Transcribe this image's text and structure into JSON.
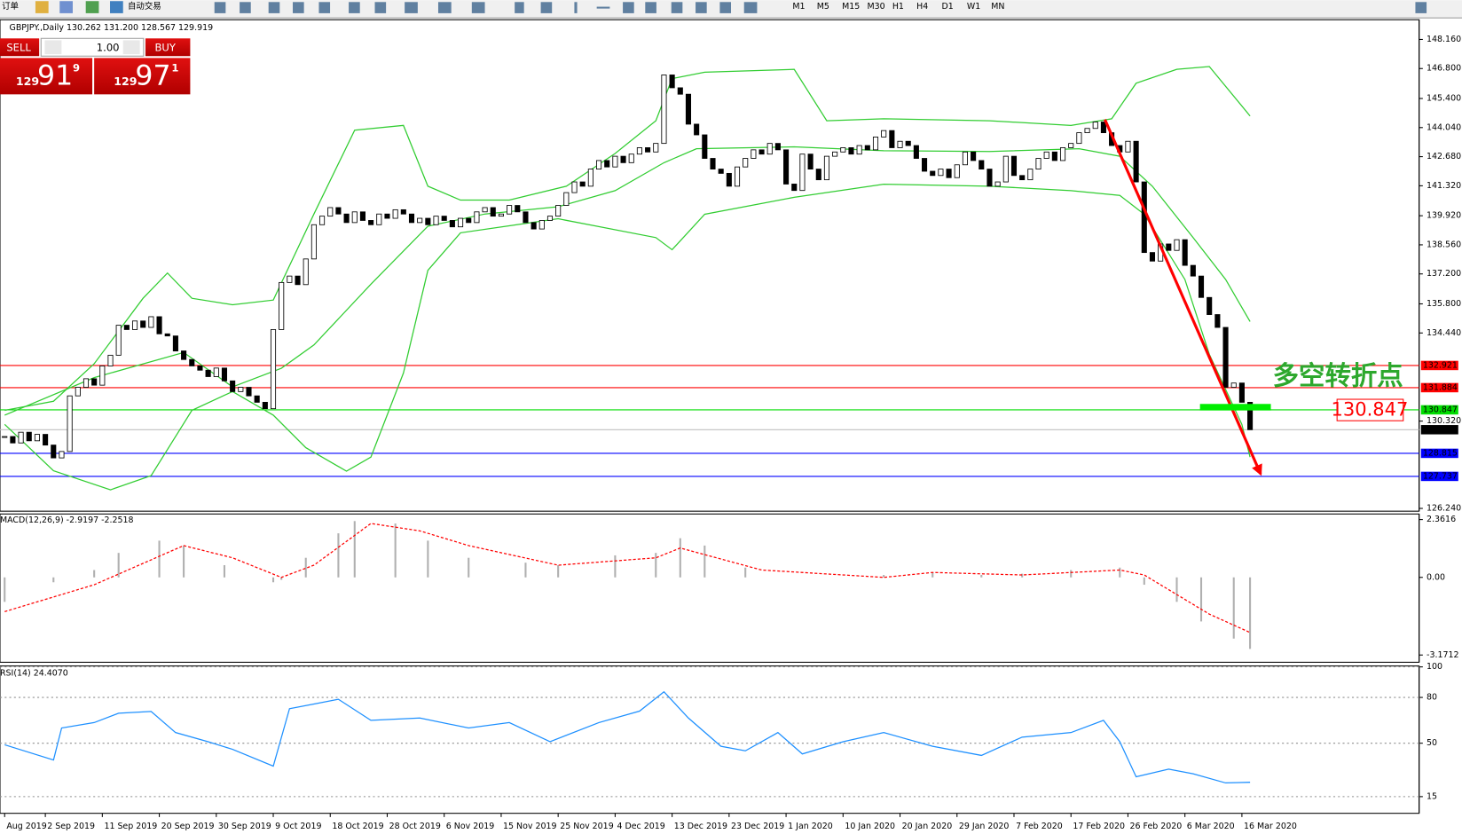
{
  "toolbar": {
    "order": "订单",
    "auto_trade": "自动交易",
    "timeframes": [
      "M1",
      "M5",
      "M15",
      "M30",
      "H1",
      "H4",
      "D1",
      "W1",
      "MN"
    ]
  },
  "trade_panel": {
    "sell": "SELL",
    "lots": "1.00",
    "buy": "BUY",
    "bid": {
      "big_figure": "129",
      "pips": "91",
      "fraction": "9"
    },
    "ask": {
      "big_figure": "129",
      "pips": "97",
      "fraction": "1"
    }
  },
  "chart_data": [
    {
      "type": "candlestick",
      "title": "GBPJPY.,Daily 130.262 131.200 128.567 129.919",
      "close": [
        129.6,
        129.3,
        129.8,
        129.4,
        129.7,
        129.2,
        128.6,
        128.9,
        131.5,
        131.9,
        132.3,
        132.0,
        132.9,
        133.4,
        134.8,
        134.6,
        135.0,
        134.7,
        135.2,
        134.4,
        134.3,
        133.6,
        133.2,
        132.9,
        132.7,
        132.4,
        132.8,
        132.2,
        131.7,
        131.9,
        131.5,
        131.2,
        130.9,
        134.6,
        136.8,
        137.1,
        136.7,
        137.9,
        139.5,
        139.9,
        140.3,
        140.0,
        139.6,
        140.1,
        139.7,
        139.5,
        140.0,
        139.8,
        140.2,
        140.0,
        139.6,
        139.8,
        139.5,
        139.9,
        139.7,
        139.4,
        139.8,
        139.6,
        140.1,
        140.3,
        139.9,
        140.0,
        140.4,
        140.1,
        139.6,
        139.3,
        139.7,
        139.9,
        140.4,
        141.0,
        141.5,
        141.3,
        142.1,
        142.5,
        142.2,
        142.7,
        142.4,
        142.8,
        143.1,
        142.9,
        143.3,
        146.5,
        145.9,
        145.6,
        144.2,
        143.7,
        142.6,
        142.1,
        141.9,
        141.3,
        142.2,
        142.6,
        143.0,
        142.8,
        143.3,
        143.0,
        141.4,
        141.1,
        142.8,
        142.1,
        141.6,
        142.7,
        142.9,
        143.1,
        142.8,
        143.2,
        143.0,
        143.6,
        143.9,
        143.1,
        143.4,
        143.2,
        142.6,
        142.0,
        141.8,
        142.1,
        141.7,
        142.3,
        142.9,
        142.5,
        142.1,
        141.3,
        141.5,
        142.7,
        141.8,
        141.6,
        142.1,
        142.6,
        142.9,
        142.5,
        143.1,
        143.3,
        143.8,
        144.0,
        144.3,
        143.8,
        143.2,
        142.9,
        143.4,
        141.5,
        138.2,
        137.8,
        138.6,
        138.3,
        138.8,
        137.6,
        137.1,
        136.1,
        135.3,
        134.7,
        131.9,
        132.1,
        131.2,
        129.919
      ],
      "xlim": [
        -0.57,
        173.77
      ],
      "ylim": [
        126.11,
        149.08
      ],
      "yticks": [
        {
          "value": 148.16,
          "label": "148.160"
        },
        {
          "value": 146.8,
          "label": "146.800"
        },
        {
          "value": 145.4,
          "label": "145.400"
        },
        {
          "value": 144.04,
          "label": "144.040"
        },
        {
          "value": 142.68,
          "label": "142.680"
        },
        {
          "value": 141.32,
          "label": "141.320"
        },
        {
          "value": 139.92,
          "label": "139.920"
        },
        {
          "value": 138.56,
          "label": "138.560"
        },
        {
          "value": 137.2,
          "label": "137.200"
        },
        {
          "value": 135.8,
          "label": "135.800"
        },
        {
          "value": 134.44,
          "label": "134.440"
        },
        {
          "value": 130.32,
          "label": "130.320"
        },
        {
          "value": 126.24,
          "label": "126.240"
        }
      ],
      "series": [
        {
          "color": "#32cd32",
          "x": [
            0,
            6,
            11,
            17,
            20,
            23,
            28,
            33,
            38,
            43,
            49,
            52,
            56,
            62,
            69,
            75,
            80,
            82,
            86,
            97,
            101,
            108,
            121,
            131,
            136,
            139,
            144,
            148,
            153
          ],
          "values": [
            130.82,
            131.25,
            133.0,
            136.06,
            137.24,
            136.06,
            135.76,
            135.98,
            140.0,
            143.92,
            144.14,
            141.3,
            140.65,
            140.65,
            141.3,
            142.83,
            144.36,
            146.33,
            146.63,
            146.76,
            144.36,
            144.45,
            144.36,
            144.14,
            144.45,
            146.11,
            146.76,
            146.89,
            144.58
          ]
        },
        {
          "color": "#32cd32",
          "x": [
            0,
            11,
            22,
            28,
            34,
            38,
            45,
            52,
            59,
            68,
            75,
            81,
            85,
            97,
            108,
            121,
            132,
            137,
            141,
            146,
            150,
            153
          ],
          "values": [
            130.6,
            132.35,
            133.53,
            131.92,
            132.79,
            133.88,
            136.72,
            139.43,
            140.0,
            140.34,
            141.09,
            142.4,
            143.05,
            143.14,
            142.96,
            142.92,
            143.05,
            142.7,
            141.3,
            138.9,
            136.94,
            134.97
          ]
        },
        {
          "color": "#32cd32",
          "x": [
            0,
            6,
            13,
            18,
            23,
            28,
            33,
            37,
            42,
            45,
            49,
            52,
            56,
            68,
            80,
            82,
            86,
            97,
            108,
            121,
            131,
            137,
            140,
            145,
            148,
            152,
            153
          ],
          "values": [
            130.17,
            128.0,
            127.11,
            127.77,
            130.82,
            131.7,
            130.6,
            129.08,
            127.98,
            128.64,
            132.57,
            137.37,
            139.12,
            139.78,
            138.9,
            138.33,
            139.99,
            140.78,
            141.39,
            141.3,
            141.09,
            140.87,
            139.99,
            136.94,
            133.44,
            130.17,
            128.64
          ]
        }
      ],
      "levels": [
        {
          "value": 132.921,
          "color": "#ff0000",
          "label_fill": "#ff0000"
        },
        {
          "value": 131.884,
          "color": "#ff0000",
          "label_fill": "#ff0000"
        },
        {
          "value": 130.847,
          "color": "#00dd00",
          "label_fill": "#00dd00"
        },
        {
          "value": 129.919,
          "color": "#c0c0c0",
          "label_fill": "#000000"
        },
        {
          "value": 128.815,
          "color": "#0000ff",
          "label_fill": "#0000ff"
        },
        {
          "value": 127.737,
          "color": "#0000ff",
          "label_fill": "#0000ff"
        }
      ],
      "annotations": [
        "多空转折点",
        "130.847"
      ]
    },
    {
      "type": "bar",
      "title": "MACD(12,26,9) -2.9197 -2.2518",
      "xlim": [
        -0.57,
        173.77
      ],
      "ylim": [
        -3.467,
        2.59
      ],
      "yticks": [
        2.3616,
        {
          "value": 0,
          "label": "0.00"
        },
        -3.1712
      ],
      "series": [
        {
          "kind": "bar",
          "color": "#b0b0b0",
          "x": [
            0,
            6,
            11,
            14,
            19,
            22,
            27,
            33,
            34,
            37,
            41,
            43,
            48,
            52,
            57,
            64,
            68,
            75,
            80,
            83,
            86,
            91,
            97,
            103,
            108,
            114,
            120,
            125,
            131,
            137,
            140,
            144,
            147,
            151,
            153
          ],
          "values": [
            -1.0,
            -0.2,
            0.3,
            1.0,
            1.5,
            1.3,
            0.5,
            -0.2,
            -0.1,
            0.8,
            1.8,
            2.3,
            2.2,
            1.5,
            0.8,
            0.6,
            0.5,
            0.9,
            1.0,
            1.6,
            1.3,
            0.4,
            0.0,
            0.0,
            0.1,
            0.2,
            0.1,
            0.15,
            0.3,
            0.4,
            -0.3,
            -1.0,
            -1.8,
            -2.5,
            -2.9197
          ]
        },
        {
          "kind": "line",
          "color": "#ff0000",
          "dash": true,
          "x": [
            0,
            11,
            22,
            28,
            34,
            38,
            45,
            51,
            57,
            68,
            80,
            83,
            93,
            108,
            114,
            125,
            137,
            140,
            148,
            153
          ],
          "values": [
            -1.4,
            -0.3,
            1.3,
            0.8,
            0.0,
            0.5,
            2.2,
            1.9,
            1.3,
            0.5,
            0.8,
            1.2,
            0.3,
            0.0,
            0.2,
            0.1,
            0.3,
            0.1,
            -1.5,
            -2.2518
          ]
        }
      ]
    },
    {
      "type": "line",
      "title": "RSI(14) 24.4070",
      "xlim": [
        -0.57,
        173.77
      ],
      "ylim": [
        4.07,
        100.6
      ],
      "yticks": [
        100,
        80,
        50,
        15
      ],
      "grid": true,
      "series": [
        {
          "color": "#1e90ff",
          "x": [
            0,
            6,
            7,
            11,
            14,
            18,
            21,
            25,
            28,
            33,
            35,
            38,
            41,
            45,
            51,
            57,
            62,
            67,
            73,
            78,
            81,
            84,
            88,
            91,
            95,
            98,
            103,
            108,
            114,
            120,
            125,
            131,
            135,
            137,
            139,
            143,
            146,
            150,
            153
          ],
          "values": [
            49,
            39,
            60,
            63.5,
            69.6,
            70.8,
            57,
            51,
            46,
            35,
            72.6,
            75.7,
            78.8,
            65,
            66.5,
            60,
            63.5,
            51,
            63.5,
            71,
            83.7,
            66.5,
            48,
            45,
            57,
            43,
            51,
            57,
            48,
            42,
            54,
            57,
            65,
            51,
            28,
            33,
            30,
            24,
            24.407
          ]
        }
      ],
      "xticks": [
        {
          "value": 0,
          "label": "Aug 2019"
        },
        {
          "value": 5,
          "label": "2 Sep 2019"
        },
        {
          "value": 12,
          "label": "11 Sep 2019"
        },
        {
          "value": 19,
          "label": "20 Sep 2019"
        },
        {
          "value": 26,
          "label": "30 Sep 2019"
        },
        {
          "value": 33,
          "label": "9 Oct 2019"
        },
        {
          "value": 40,
          "label": "18 Oct 2019"
        },
        {
          "value": 47,
          "label": "28 Oct 2019"
        },
        {
          "value": 54,
          "label": "6 Nov 2019"
        },
        {
          "value": 61,
          "label": "15 Nov 2019"
        },
        {
          "value": 68,
          "label": "25 Nov 2019"
        },
        {
          "value": 75,
          "label": "4 Dec 2019"
        },
        {
          "value": 82,
          "label": "13 Dec 2019"
        },
        {
          "value": 89,
          "label": "23 Dec 2019"
        },
        {
          "value": 96,
          "label": "1 Jan 2020"
        },
        {
          "value": 103,
          "label": "10 Jan 2020"
        },
        {
          "value": 110,
          "label": "20 Jan 2020"
        },
        {
          "value": 117,
          "label": "29 Jan 2020"
        },
        {
          "value": 124,
          "label": "7 Feb 2020"
        },
        {
          "value": 131,
          "label": "17 Feb 2020"
        },
        {
          "value": 138,
          "label": "26 Feb 2020"
        },
        {
          "value": 145,
          "label": "6 Mar 2020"
        },
        {
          "value": 152,
          "label": "16 Mar 2020"
        }
      ]
    }
  ]
}
